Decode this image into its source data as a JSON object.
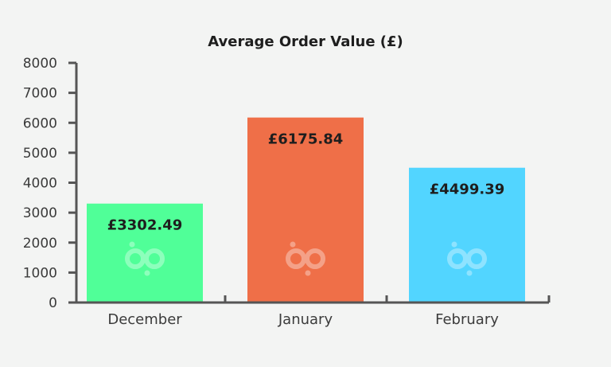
{
  "chart_data": {
    "type": "bar",
    "title": "Average Order Value (£)",
    "xlabel": "",
    "ylabel": "",
    "categories": [
      "December",
      "January",
      "February"
    ],
    "values": [
      3302.49,
      6175.84,
      4499.39
    ],
    "data_labels": [
      "£3302.49",
      "£6175.84",
      "£4499.39"
    ],
    "colors": [
      "#50ff98",
      "#ef6f48",
      "#52d5ff"
    ],
    "ylim": [
      0,
      8000
    ],
    "yticks": [
      0,
      1000,
      2000,
      3000,
      4000,
      5000,
      6000,
      7000,
      8000
    ],
    "ytick_labels": [
      "0",
      "1000",
      "2000",
      "3000",
      "4000",
      "5000",
      "6000",
      "7000",
      "8000"
    ],
    "grid": false,
    "legend": "none",
    "watermark_icon": "bp-logo-icon",
    "axis_color": "#555555",
    "background": "#f3f4f3"
  }
}
